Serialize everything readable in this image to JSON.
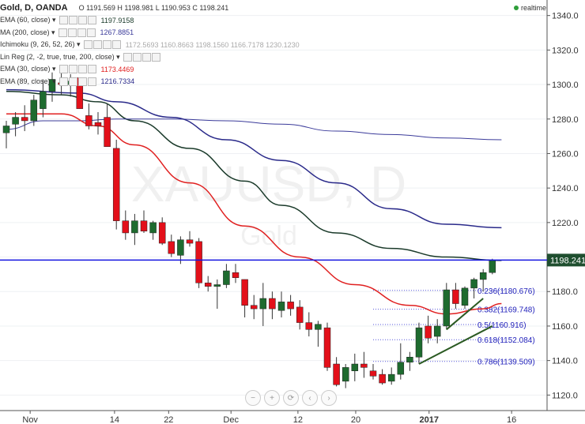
{
  "header": {
    "symbol": "Gold, D, OANDA",
    "ohlc": "O 1191.569  H 1198.981  L 1190.953  C 1198.241",
    "realtime": "realtime"
  },
  "indicators": [
    {
      "label": "EMA (60, close)",
      "value": "1197.9158",
      "color": "#1a3a2a"
    },
    {
      "label": "MA (200, close)",
      "value": "1267.8851",
      "color": "#3b3b9a"
    },
    {
      "label": "Ichimoku (9, 26, 52, 26)",
      "value": "1172.5693  1160.8663  1198.1560  1166.7178  1230.1230",
      "color": "#aaaaaa"
    },
    {
      "label": "Lin Reg (2, -2, true, true, 200, close)",
      "value": "",
      "color": "#aaaaaa"
    },
    {
      "label": "EMA (30, close)",
      "value": "1173.4469",
      "color": "#e02020"
    },
    {
      "label": "EMA (89, close)",
      "value": "1216.7334",
      "color": "#2a2a8a"
    }
  ],
  "watermark": {
    "symbol": "XAUUSD, D",
    "name": "Gold"
  },
  "nav_buttons": [
    "minus-icon",
    "plus-icon",
    "reset-icon",
    "left-icon",
    "right-icon"
  ],
  "chart_data": {
    "type": "candlestick",
    "x_tick_labels": [
      "Nov",
      "14",
      "22",
      "Dec",
      "12",
      "20",
      "2017",
      "16"
    ],
    "y_ticks": [
      1120,
      1140,
      1160,
      1180,
      1200,
      1220,
      1240,
      1260,
      1280,
      1300,
      1320,
      1340
    ],
    "ylim": [
      1111,
      1349
    ],
    "current_price": {
      "value": 1198.241,
      "label": "1198.241"
    },
    "candles": [
      {
        "o": 1272,
        "h": 1279,
        "l": 1263,
        "c": 1276
      },
      {
        "o": 1277,
        "h": 1284,
        "l": 1270,
        "c": 1281
      },
      {
        "o": 1281,
        "h": 1288,
        "l": 1273,
        "c": 1279
      },
      {
        "o": 1279,
        "h": 1294,
        "l": 1276,
        "c": 1291
      },
      {
        "o": 1286,
        "h": 1303,
        "l": 1281,
        "c": 1296
      },
      {
        "o": 1296,
        "h": 1307,
        "l": 1290,
        "c": 1303
      },
      {
        "o": 1301,
        "h": 1309,
        "l": 1294,
        "c": 1300
      },
      {
        "o": 1300,
        "h": 1306,
        "l": 1293,
        "c": 1302
      },
      {
        "o": 1304,
        "h": 1304,
        "l": 1286,
        "c": 1286
      },
      {
        "o": 1282,
        "h": 1289,
        "l": 1274,
        "c": 1276
      },
      {
        "o": 1278,
        "h": 1284,
        "l": 1271,
        "c": 1276
      },
      {
        "o": 1281,
        "h": 1289,
        "l": 1264,
        "c": 1264
      },
      {
        "o": 1263,
        "h": 1268,
        "l": 1216,
        "c": 1221
      },
      {
        "o": 1221,
        "h": 1227,
        "l": 1210,
        "c": 1214
      },
      {
        "o": 1214,
        "h": 1225,
        "l": 1207,
        "c": 1221
      },
      {
        "o": 1221,
        "h": 1227,
        "l": 1214,
        "c": 1215
      },
      {
        "o": 1214,
        "h": 1221,
        "l": 1210,
        "c": 1220
      },
      {
        "o": 1220,
        "h": 1223,
        "l": 1207,
        "c": 1208
      },
      {
        "o": 1209,
        "h": 1213,
        "l": 1200,
        "c": 1202
      },
      {
        "o": 1201,
        "h": 1212,
        "l": 1196,
        "c": 1210
      },
      {
        "o": 1210,
        "h": 1215,
        "l": 1206,
        "c": 1208
      },
      {
        "o": 1209,
        "h": 1211,
        "l": 1182,
        "c": 1185
      },
      {
        "o": 1185,
        "h": 1189,
        "l": 1180,
        "c": 1183
      },
      {
        "o": 1183,
        "h": 1187,
        "l": 1170,
        "c": 1184
      },
      {
        "o": 1184,
        "h": 1196,
        "l": 1182,
        "c": 1192
      },
      {
        "o": 1191,
        "h": 1196,
        "l": 1185,
        "c": 1188
      },
      {
        "o": 1187,
        "h": 1187,
        "l": 1165,
        "c": 1172
      },
      {
        "o": 1172,
        "h": 1178,
        "l": 1164,
        "c": 1170
      },
      {
        "o": 1170,
        "h": 1185,
        "l": 1160,
        "c": 1176
      },
      {
        "o": 1176,
        "h": 1180,
        "l": 1164,
        "c": 1170
      },
      {
        "o": 1169,
        "h": 1180,
        "l": 1165,
        "c": 1174
      },
      {
        "o": 1174,
        "h": 1178,
        "l": 1166,
        "c": 1170
      },
      {
        "o": 1171,
        "h": 1175,
        "l": 1158,
        "c": 1162
      },
      {
        "o": 1162,
        "h": 1168,
        "l": 1154,
        "c": 1158
      },
      {
        "o": 1158,
        "h": 1163,
        "l": 1148,
        "c": 1161
      },
      {
        "o": 1159,
        "h": 1162,
        "l": 1134,
        "c": 1136
      },
      {
        "o": 1138,
        "h": 1142,
        "l": 1125,
        "c": 1126
      },
      {
        "o": 1128,
        "h": 1138,
        "l": 1124,
        "c": 1136
      },
      {
        "o": 1134,
        "h": 1144,
        "l": 1128,
        "c": 1138
      },
      {
        "o": 1138,
        "h": 1145,
        "l": 1130,
        "c": 1136
      },
      {
        "o": 1134,
        "h": 1138,
        "l": 1129,
        "c": 1131
      },
      {
        "o": 1132,
        "h": 1135,
        "l": 1126,
        "c": 1127
      },
      {
        "o": 1128,
        "h": 1136,
        "l": 1126,
        "c": 1132
      },
      {
        "o": 1132,
        "h": 1150,
        "l": 1129,
        "c": 1139
      },
      {
        "o": 1139,
        "h": 1145,
        "l": 1134,
        "c": 1142
      },
      {
        "o": 1142,
        "h": 1162,
        "l": 1138,
        "c": 1159
      },
      {
        "o": 1160,
        "h": 1166,
        "l": 1150,
        "c": 1153
      },
      {
        "o": 1154,
        "h": 1164,
        "l": 1150,
        "c": 1160
      },
      {
        "o": 1160,
        "h": 1185,
        "l": 1158,
        "c": 1181
      },
      {
        "o": 1181,
        "h": 1185,
        "l": 1170,
        "c": 1173
      },
      {
        "o": 1172,
        "h": 1183,
        "l": 1170,
        "c": 1182
      },
      {
        "o": 1182,
        "h": 1188,
        "l": 1176,
        "c": 1187
      },
      {
        "o": 1187,
        "h": 1193,
        "l": 1180,
        "c": 1191
      },
      {
        "o": 1191,
        "h": 1199,
        "l": 1190,
        "c": 1198
      }
    ],
    "series": [
      {
        "name": "EMA (60, close)",
        "color": "#1a3a2a",
        "width": 1.5,
        "points": [
          [
            0,
            1296
          ],
          [
            6,
            1294
          ],
          [
            10,
            1290
          ],
          [
            14,
            1279
          ],
          [
            20,
            1263
          ],
          [
            26,
            1244
          ],
          [
            30,
            1230
          ],
          [
            36,
            1214
          ],
          [
            42,
            1205
          ],
          [
            48,
            1200
          ],
          [
            54,
            1198
          ]
        ]
      },
      {
        "name": "MA (200, close)",
        "color": "#3b3b9a",
        "width": 1,
        "points": [
          [
            0,
            1274
          ],
          [
            4,
            1279
          ],
          [
            8,
            1279
          ],
          [
            12,
            1280
          ],
          [
            18,
            1280
          ],
          [
            24,
            1279
          ],
          [
            30,
            1277
          ],
          [
            36,
            1273
          ],
          [
            42,
            1271
          ],
          [
            48,
            1269
          ],
          [
            54,
            1268
          ]
        ]
      },
      {
        "name": "EMA (30, close)",
        "color": "#e02020",
        "width": 1.5,
        "points": [
          [
            0,
            1283
          ],
          [
            6,
            1283
          ],
          [
            10,
            1276
          ],
          [
            14,
            1265
          ],
          [
            20,
            1243
          ],
          [
            26,
            1218
          ],
          [
            32,
            1200
          ],
          [
            38,
            1184
          ],
          [
            44,
            1172
          ],
          [
            48,
            1167
          ],
          [
            52,
            1170
          ],
          [
            54,
            1173
          ]
        ]
      },
      {
        "name": "EMA (89, close)",
        "color": "#2a2a8a",
        "width": 1.5,
        "points": [
          [
            0,
            1297
          ],
          [
            8,
            1295
          ],
          [
            12,
            1290
          ],
          [
            18,
            1281
          ],
          [
            24,
            1268
          ],
          [
            30,
            1256
          ],
          [
            36,
            1243
          ],
          [
            42,
            1228
          ],
          [
            48,
            1219
          ],
          [
            54,
            1217
          ]
        ]
      }
    ],
    "trendlines": [
      {
        "from": [
          45,
          1138
        ],
        "to": [
          53,
          1160
        ],
        "color": "#2b5a22"
      },
      {
        "from": [
          48,
          1158
        ],
        "to": [
          52,
          1176
        ],
        "color": "#2b5a22"
      }
    ],
    "fibonacci": [
      {
        "ratio": "0.236",
        "price": 1180.676,
        "label": "0.236(1180.676)"
      },
      {
        "ratio": "0.382",
        "price": 1169.748,
        "label": "0.382(1169.748)"
      },
      {
        "ratio": "0.5",
        "price": 1160.916,
        "label": "0.5(1160.916)"
      },
      {
        "ratio": "0.618",
        "price": 1152.084,
        "label": "0.618(1152.084)"
      },
      {
        "ratio": "0.786",
        "price": 1139.509,
        "label": "0.786(1139.509)"
      }
    ]
  }
}
